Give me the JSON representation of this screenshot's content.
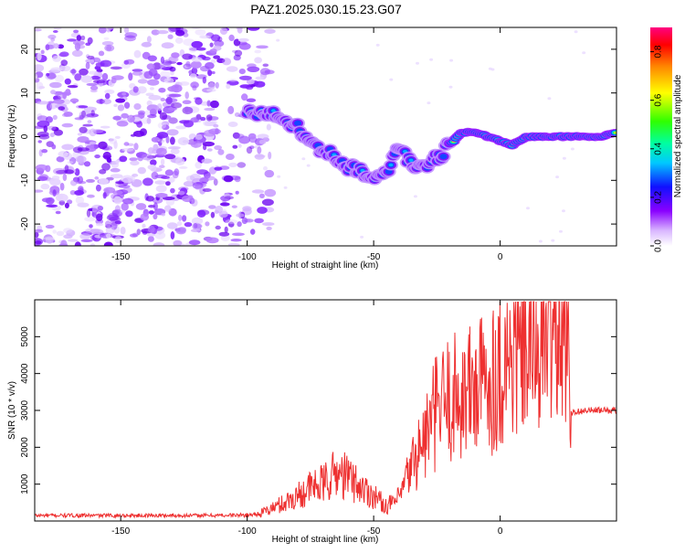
{
  "title": "PAZ1.2025.030.15.23.G07",
  "chart_data": [
    {
      "type": "heatmap",
      "xlabel": "Height of straight line (km)",
      "ylabel": "Frequency (Hz)",
      "xlim": [
        -184,
        46
      ],
      "ylim": [
        -25,
        25
      ],
      "xticks": [
        -150,
        -100,
        -50,
        0
      ],
      "yticks": [
        -20,
        -10,
        0,
        10,
        20
      ],
      "colorbar": {
        "label": "Normalized spectral amplitude",
        "range": [
          0,
          0.9
        ],
        "ticks": [
          "0.0",
          "0.2",
          "0.4",
          "0.6",
          "0.8"
        ]
      },
      "ridge": {
        "x": [
          -100,
          -95,
          -90,
          -85,
          -80,
          -75,
          -70,
          -65,
          -60,
          -55,
          -50,
          -45,
          -40,
          -35,
          -30,
          -25,
          -20,
          -15,
          -10,
          -5,
          0,
          5,
          10,
          15,
          20,
          30,
          40,
          46
        ],
        "freq": [
          6,
          5,
          5,
          4,
          2,
          -1,
          -3,
          -5,
          -7,
          -8,
          -9,
          -8,
          -3,
          -6,
          -7,
          -5,
          -2,
          1,
          1,
          0,
          -1,
          -2,
          0,
          0,
          0,
          0,
          0,
          1
        ]
      },
      "noise_region_x": [
        -184,
        -90
      ]
    },
    {
      "type": "line",
      "xlabel": "Height of straight line (km)",
      "ylabel": "SNR (10 * v/v)",
      "xlim": [
        -184,
        46
      ],
      "ylim": [
        0,
        6000
      ],
      "xticks": [
        -150,
        -100,
        -50,
        0
      ],
      "yticks": [
        1000,
        2000,
        3000,
        4000,
        5000
      ],
      "line_color": "#ee3030",
      "series": [
        {
          "x": [
            -184,
            -160,
            -140,
            -120,
            -100,
            -95,
            -90,
            -85,
            -80,
            -75,
            -70,
            -65,
            -60,
            -55,
            -50,
            -45,
            -40,
            -35,
            -30,
            -25,
            -20,
            -15,
            -10,
            -5,
            0,
            5,
            10,
            15,
            20,
            25,
            27,
            28,
            35,
            46
          ],
          "values": [
            150,
            150,
            150,
            150,
            160,
            200,
            350,
            500,
            700,
            900,
            1000,
            1300,
            1200,
            900,
            700,
            400,
            600,
            1500,
            2200,
            3000,
            3300,
            3400,
            3600,
            3800,
            4100,
            4500,
            4800,
            5000,
            5300,
            5600,
            5800,
            2950,
            3000,
            3000
          ]
        }
      ]
    }
  ]
}
